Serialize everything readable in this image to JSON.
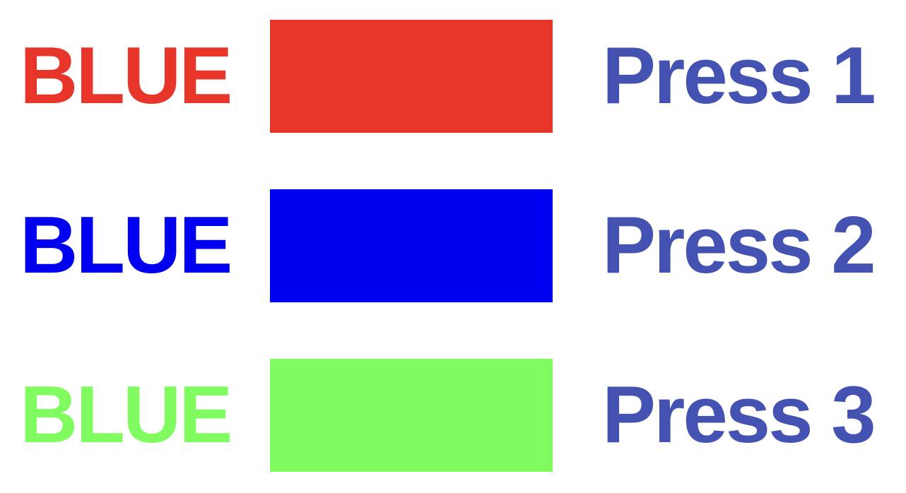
{
  "trials": [
    {
      "word": "BLUE",
      "word_color": "#e8352a",
      "swatch_color": "#e8352a",
      "key_label": "Press 1"
    },
    {
      "word": "BLUE",
      "word_color": "#0000f0",
      "swatch_color": "#0000f0",
      "key_label": "Press 2"
    },
    {
      "word": "BLUE",
      "word_color": "#80fb60",
      "swatch_color": "#80fb60",
      "key_label": "Press 3"
    }
  ],
  "key_label_color": "#4453b2"
}
